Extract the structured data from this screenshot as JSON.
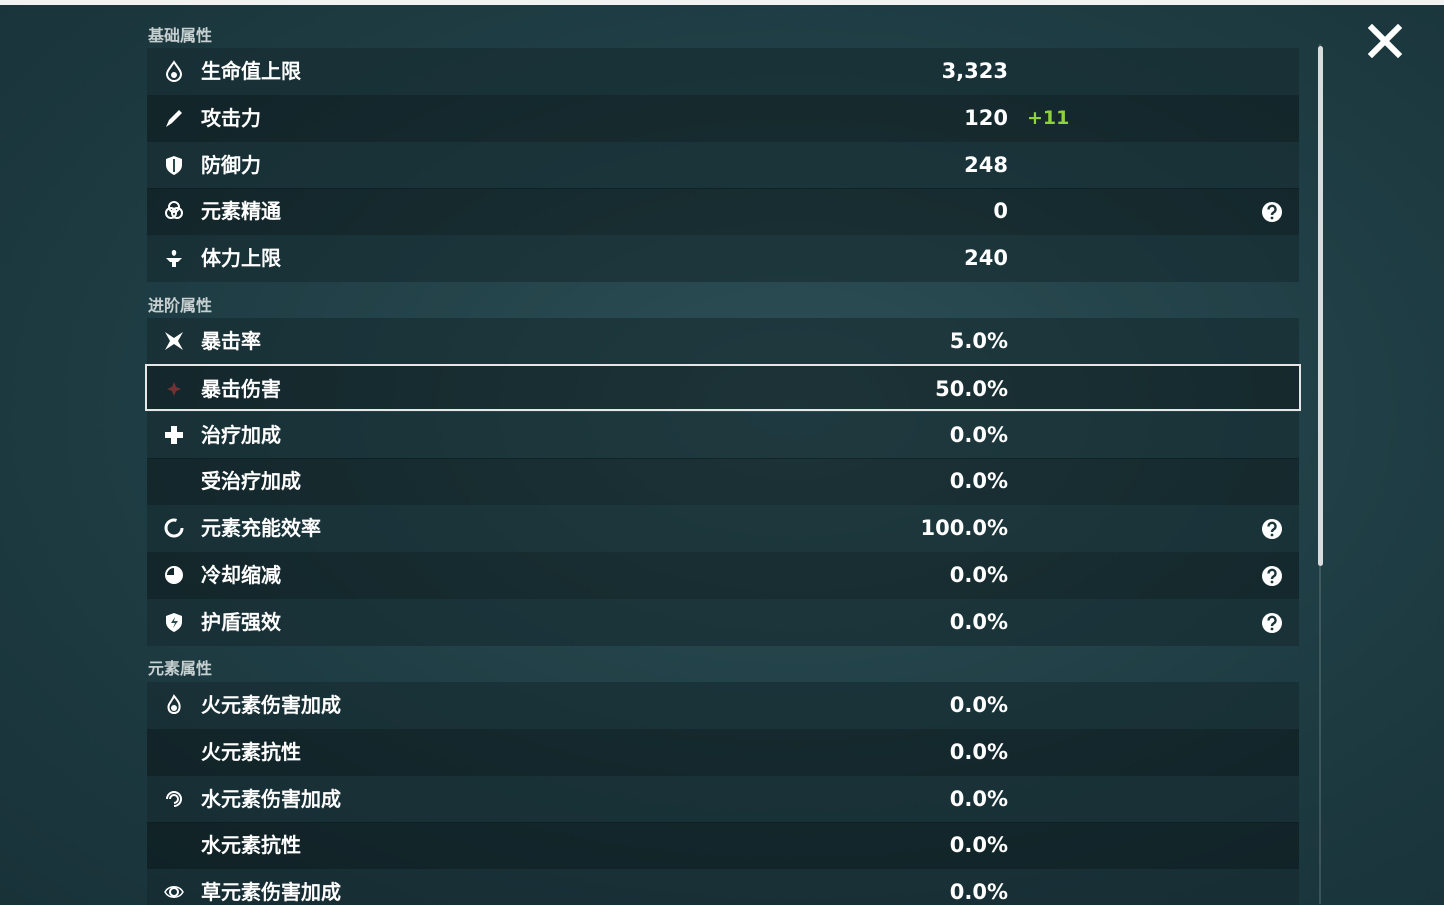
{
  "sections": [
    {
      "title": "基础属性",
      "rows": [
        {
          "name": "生命值上限",
          "value": "3,323"
        },
        {
          "name": "攻击力",
          "value": "120",
          "bonus": "+11"
        },
        {
          "name": "防御力",
          "value": "248"
        },
        {
          "name": "元素精通",
          "value": "0",
          "help": true
        },
        {
          "name": "体力上限",
          "value": "240"
        }
      ]
    },
    {
      "title": "进阶属性",
      "rows": [
        {
          "name": "暴击率",
          "value": "5.0%"
        },
        {
          "name": "暴击伤害",
          "value": "50.0%",
          "selected": true
        },
        {
          "name": "治疗加成",
          "value": "0.0%"
        },
        {
          "name": "受治疗加成",
          "value": "0.0%"
        },
        {
          "name": "元素充能效率",
          "value": "100.0%",
          "help": true
        },
        {
          "name": "冷却缩减",
          "value": "0.0%",
          "help": true
        },
        {
          "name": "护盾强效",
          "value": "0.0%",
          "help": true
        }
      ]
    },
    {
      "title": "元素属性",
      "rows": [
        {
          "name": "火元素伤害加成",
          "value": "0.0%"
        },
        {
          "name": "火元素抗性",
          "value": "0.0%"
        },
        {
          "name": "水元素伤害加成",
          "value": "0.0%"
        },
        {
          "name": "水元素抗性",
          "value": "0.0%"
        },
        {
          "name": "草元素伤害加成",
          "value": "0.0%"
        }
      ]
    }
  ]
}
